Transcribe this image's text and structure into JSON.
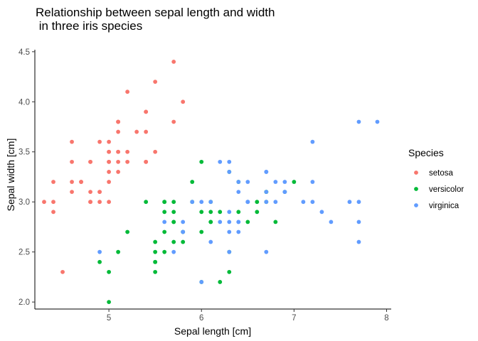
{
  "chart_data": {
    "type": "scatter",
    "title_lines": [
      "Relationship between sepal length and width",
      " in three iris species"
    ],
    "xlabel": "Sepal length [cm]",
    "ylabel": "Sepal width [cm]",
    "xlim": [
      4.2,
      8.05
    ],
    "ylim": [
      1.93,
      4.52
    ],
    "xticks": [
      5,
      6,
      7,
      8
    ],
    "yticks": [
      2.0,
      2.5,
      3.0,
      3.5,
      4.0,
      4.5
    ],
    "xtick_labels": [
      "5",
      "6",
      "7",
      "8"
    ],
    "ytick_labels": [
      "2.0",
      "2.5",
      "3.0",
      "3.5",
      "4.0",
      "4.5"
    ],
    "grid": false,
    "legend": {
      "title": "Species",
      "placement": "right"
    },
    "series": [
      {
        "name": "setosa",
        "color": "#F8766D",
        "points": [
          [
            5.1,
            3.5
          ],
          [
            4.9,
            3.0
          ],
          [
            4.7,
            3.2
          ],
          [
            4.6,
            3.1
          ],
          [
            5.0,
            3.6
          ],
          [
            5.4,
            3.9
          ],
          [
            4.6,
            3.4
          ],
          [
            5.0,
            3.4
          ],
          [
            4.4,
            2.9
          ],
          [
            4.9,
            3.1
          ],
          [
            5.4,
            3.7
          ],
          [
            4.8,
            3.4
          ],
          [
            4.8,
            3.0
          ],
          [
            4.3,
            3.0
          ],
          [
            5.8,
            4.0
          ],
          [
            5.7,
            4.4
          ],
          [
            5.4,
            3.9
          ],
          [
            5.1,
            3.5
          ],
          [
            5.7,
            3.8
          ],
          [
            5.1,
            3.8
          ],
          [
            5.4,
            3.4
          ],
          [
            5.1,
            3.7
          ],
          [
            4.6,
            3.6
          ],
          [
            5.1,
            3.3
          ],
          [
            4.8,
            3.4
          ],
          [
            5.0,
            3.0
          ],
          [
            5.0,
            3.4
          ],
          [
            5.2,
            3.5
          ],
          [
            5.2,
            3.4
          ],
          [
            4.7,
            3.2
          ],
          [
            4.8,
            3.1
          ],
          [
            5.4,
            3.4
          ],
          [
            5.2,
            4.1
          ],
          [
            5.5,
            4.2
          ],
          [
            4.9,
            3.1
          ],
          [
            5.0,
            3.2
          ],
          [
            5.5,
            3.5
          ],
          [
            4.9,
            3.6
          ],
          [
            4.4,
            3.0
          ],
          [
            5.1,
            3.4
          ],
          [
            5.0,
            3.5
          ],
          [
            4.5,
            2.3
          ],
          [
            4.4,
            3.2
          ],
          [
            5.0,
            3.5
          ],
          [
            5.1,
            3.8
          ],
          [
            4.8,
            3.0
          ],
          [
            5.1,
            3.8
          ],
          [
            4.6,
            3.2
          ],
          [
            5.3,
            3.7
          ],
          [
            5.0,
            3.3
          ]
        ]
      },
      {
        "name": "versicolor",
        "color": "#00BA38",
        "points": [
          [
            7.0,
            3.2
          ],
          [
            6.4,
            3.2
          ],
          [
            6.9,
            3.1
          ],
          [
            5.5,
            2.3
          ],
          [
            6.5,
            2.8
          ],
          [
            5.7,
            2.8
          ],
          [
            6.3,
            3.3
          ],
          [
            4.9,
            2.4
          ],
          [
            6.6,
            2.9
          ],
          [
            5.2,
            2.7
          ],
          [
            5.0,
            2.0
          ],
          [
            5.9,
            3.0
          ],
          [
            6.0,
            2.2
          ],
          [
            6.1,
            2.9
          ],
          [
            5.6,
            2.9
          ],
          [
            6.7,
            3.1
          ],
          [
            5.6,
            3.0
          ],
          [
            5.8,
            2.7
          ],
          [
            6.2,
            2.2
          ],
          [
            5.6,
            2.5
          ],
          [
            5.9,
            3.2
          ],
          [
            6.1,
            2.8
          ],
          [
            6.3,
            2.5
          ],
          [
            6.1,
            2.8
          ],
          [
            6.4,
            2.9
          ],
          [
            6.6,
            3.0
          ],
          [
            6.8,
            2.8
          ],
          [
            6.7,
            3.0
          ],
          [
            6.0,
            2.9
          ],
          [
            5.7,
            2.6
          ],
          [
            5.5,
            2.4
          ],
          [
            5.5,
            2.4
          ],
          [
            5.8,
            2.7
          ],
          [
            6.0,
            2.7
          ],
          [
            5.4,
            3.0
          ],
          [
            6.0,
            3.4
          ],
          [
            6.7,
            3.1
          ],
          [
            6.3,
            2.3
          ],
          [
            5.6,
            3.0
          ],
          [
            5.5,
            2.5
          ],
          [
            5.5,
            2.6
          ],
          [
            6.1,
            3.0
          ],
          [
            5.8,
            2.6
          ],
          [
            5.0,
            2.3
          ],
          [
            5.6,
            2.7
          ],
          [
            5.7,
            3.0
          ],
          [
            5.7,
            2.9
          ],
          [
            6.2,
            2.9
          ],
          [
            5.1,
            2.5
          ],
          [
            5.7,
            2.8
          ]
        ]
      },
      {
        "name": "virginica",
        "color": "#619CFF",
        "points": [
          [
            6.3,
            3.3
          ],
          [
            5.8,
            2.7
          ],
          [
            7.1,
            3.0
          ],
          [
            6.3,
            2.9
          ],
          [
            6.5,
            3.0
          ],
          [
            7.6,
            3.0
          ],
          [
            4.9,
            2.5
          ],
          [
            7.3,
            2.9
          ],
          [
            6.7,
            2.5
          ],
          [
            7.2,
            3.6
          ],
          [
            6.5,
            3.2
          ],
          [
            6.4,
            2.7
          ],
          [
            6.8,
            3.0
          ],
          [
            5.7,
            2.5
          ],
          [
            5.8,
            2.8
          ],
          [
            6.4,
            3.2
          ],
          [
            6.5,
            3.0
          ],
          [
            7.7,
            3.8
          ],
          [
            7.7,
            2.6
          ],
          [
            6.0,
            2.2
          ],
          [
            6.9,
            3.2
          ],
          [
            5.6,
            2.8
          ],
          [
            7.7,
            2.8
          ],
          [
            6.3,
            2.7
          ],
          [
            6.7,
            3.3
          ],
          [
            7.2,
            3.2
          ],
          [
            6.2,
            2.8
          ],
          [
            6.1,
            3.0
          ],
          [
            6.4,
            2.8
          ],
          [
            7.2,
            3.0
          ],
          [
            7.4,
            2.8
          ],
          [
            7.9,
            3.8
          ],
          [
            6.4,
            2.8
          ],
          [
            6.3,
            2.8
          ],
          [
            6.1,
            2.6
          ],
          [
            7.7,
            3.0
          ],
          [
            6.3,
            3.4
          ],
          [
            6.4,
            3.1
          ],
          [
            6.0,
            3.0
          ],
          [
            6.9,
            3.1
          ],
          [
            6.7,
            3.1
          ],
          [
            6.9,
            3.1
          ],
          [
            5.8,
            2.7
          ],
          [
            6.8,
            3.2
          ],
          [
            6.7,
            3.3
          ],
          [
            6.7,
            3.0
          ],
          [
            6.3,
            2.5
          ],
          [
            6.5,
            3.0
          ],
          [
            6.2,
            3.4
          ],
          [
            5.9,
            3.0
          ]
        ]
      }
    ]
  }
}
